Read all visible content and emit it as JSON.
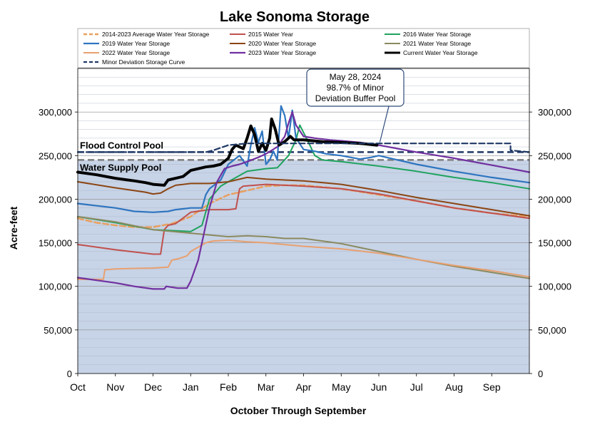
{
  "chart_data": {
    "type": "line",
    "title": "Lake Sonoma Storage",
    "xlabel": "October Through September",
    "ylabel": "Acre-feet",
    "x_categories": [
      "Oct",
      "Nov",
      "Dec",
      "Jan",
      "Feb",
      "Mar",
      "Apr",
      "May",
      "Jun",
      "Jul",
      "Aug",
      "Sep"
    ],
    "x_range": [
      0,
      12
    ],
    "ylim": [
      0,
      350000
    ],
    "y_ticks": [
      0,
      50000,
      100000,
      150000,
      200000,
      250000,
      300000
    ],
    "y_tick_labels": [
      "0",
      "50,000",
      "100,000",
      "150,000",
      "200,000",
      "250,000",
      "300,000"
    ],
    "grid": "horizontal",
    "legend_position": "top",
    "pools": {
      "flood_control": {
        "label": "Flood Control Pool",
        "value": 254000,
        "color": "#1f3864"
      },
      "water_supply": {
        "label": "Water Supply Pool",
        "value": 245000,
        "color": "#7f7f7f",
        "fill": "#c7d3e6"
      }
    },
    "annotation": {
      "lines": [
        "May 28, 2024",
        "98.7% of Minor",
        "Deviation Buffer Pool"
      ],
      "point": {
        "x": 7.95,
        "y": 262000
      }
    },
    "series": [
      {
        "name": "2014-2023 Average Water Year Storage",
        "color": "#e8a060",
        "dash": "dashed",
        "width": 2.5,
        "points": [
          [
            0,
            178000
          ],
          [
            0.5,
            173000
          ],
          [
            1,
            170000
          ],
          [
            1.5,
            168000
          ],
          [
            2,
            168000
          ],
          [
            2.5,
            172000
          ],
          [
            3,
            180000
          ],
          [
            3.5,
            195000
          ],
          [
            4,
            205000
          ],
          [
            4.3,
            208000
          ],
          [
            4.7,
            212000
          ],
          [
            5,
            215000
          ],
          [
            5.5,
            216000
          ],
          [
            6,
            216000
          ],
          [
            7,
            212000
          ],
          [
            8,
            205000
          ],
          [
            9,
            198000
          ],
          [
            10,
            190000
          ],
          [
            11,
            184000
          ],
          [
            12,
            180000
          ]
        ]
      },
      {
        "name": "2015 Water Year",
        "color": "#c0504d",
        "width": 2,
        "points": [
          [
            0,
            148000
          ],
          [
            1,
            142000
          ],
          [
            2,
            137000
          ],
          [
            2.2,
            137000
          ],
          [
            2.3,
            165000
          ],
          [
            2.4,
            170000
          ],
          [
            2.6,
            172000
          ],
          [
            3,
            185000
          ],
          [
            3.5,
            188000
          ],
          [
            4,
            188000
          ],
          [
            4.2,
            189000
          ],
          [
            4.3,
            212000
          ],
          [
            4.4,
            215000
          ],
          [
            5,
            217000
          ],
          [
            6,
            215000
          ],
          [
            7,
            212000
          ],
          [
            8,
            206000
          ],
          [
            9,
            198000
          ],
          [
            10,
            190000
          ],
          [
            11,
            184000
          ],
          [
            12,
            178000
          ]
        ]
      },
      {
        "name": "2016 Water Year Storage",
        "color": "#1fa35f",
        "width": 2,
        "points": [
          [
            0,
            180000
          ],
          [
            1,
            173000
          ],
          [
            2,
            165000
          ],
          [
            3,
            163000
          ],
          [
            3.3,
            170000
          ],
          [
            3.5,
            200000
          ],
          [
            3.8,
            215000
          ],
          [
            4,
            220000
          ],
          [
            4.5,
            232000
          ],
          [
            5,
            235000
          ],
          [
            5.3,
            236000
          ],
          [
            5.6,
            250000
          ],
          [
            5.8,
            268000
          ],
          [
            5.9,
            285000
          ],
          [
            6.1,
            268000
          ],
          [
            6.3,
            250000
          ],
          [
            6.5,
            245000
          ],
          [
            7,
            243000
          ],
          [
            8,
            238000
          ],
          [
            9,
            232000
          ],
          [
            10,
            225000
          ],
          [
            11,
            219000
          ],
          [
            12,
            212000
          ]
        ]
      },
      {
        "name": "2019 Water Year Storage",
        "color": "#2e75c0",
        "width": 2.2,
        "points": [
          [
            0,
            195000
          ],
          [
            1,
            190000
          ],
          [
            1.5,
            186000
          ],
          [
            2,
            185000
          ],
          [
            2.4,
            186000
          ],
          [
            2.6,
            188000
          ],
          [
            3,
            190000
          ],
          [
            3.3,
            190000
          ],
          [
            3.4,
            205000
          ],
          [
            3.5,
            212000
          ],
          [
            3.8,
            222000
          ],
          [
            4,
            240000
          ],
          [
            4.3,
            250000
          ],
          [
            4.5,
            238000
          ],
          [
            4.6,
            262000
          ],
          [
            4.7,
            282000
          ],
          [
            4.8,
            265000
          ],
          [
            4.9,
            278000
          ],
          [
            5,
            240000
          ],
          [
            5.1,
            245000
          ],
          [
            5.2,
            255000
          ],
          [
            5.3,
            245000
          ],
          [
            5.35,
            275000
          ],
          [
            5.4,
            307000
          ],
          [
            5.5,
            296000
          ],
          [
            5.6,
            270000
          ],
          [
            5.7,
            302000
          ],
          [
            5.8,
            270000
          ],
          [
            6,
            257000
          ],
          [
            6.3,
            255000
          ],
          [
            6.6,
            252000
          ],
          [
            7,
            250000
          ],
          [
            7.5,
            246000
          ],
          [
            7.8,
            248000
          ],
          [
            8,
            250000
          ],
          [
            8.5,
            245000
          ],
          [
            9,
            240000
          ],
          [
            10,
            232000
          ],
          [
            11,
            225000
          ],
          [
            12,
            219000
          ]
        ]
      },
      {
        "name": "2020 Water Year Storage",
        "color": "#8b4513",
        "width": 2,
        "points": [
          [
            0,
            220000
          ],
          [
            1,
            213000
          ],
          [
            1.8,
            208000
          ],
          [
            2,
            206000
          ],
          [
            2.2,
            207000
          ],
          [
            2.4,
            212000
          ],
          [
            2.6,
            216000
          ],
          [
            3,
            218000
          ],
          [
            3.5,
            218000
          ],
          [
            4,
            220000
          ],
          [
            4.5,
            225000
          ],
          [
            5,
            223000
          ],
          [
            6,
            221000
          ],
          [
            7,
            217000
          ],
          [
            8,
            210000
          ],
          [
            9,
            202000
          ],
          [
            10,
            195000
          ],
          [
            11,
            188000
          ],
          [
            12,
            181000
          ]
        ]
      },
      {
        "name": "2021 Water Year Storage",
        "color": "#8a8a60",
        "width": 2,
        "points": [
          [
            0,
            180000
          ],
          [
            1,
            174000
          ],
          [
            2,
            165000
          ],
          [
            3,
            161000
          ],
          [
            3.5,
            159000
          ],
          [
            4,
            157000
          ],
          [
            4.5,
            158000
          ],
          [
            5,
            157000
          ],
          [
            5.5,
            155000
          ],
          [
            6,
            155000
          ],
          [
            7,
            149000
          ],
          [
            8,
            140000
          ],
          [
            9,
            131000
          ],
          [
            10,
            123000
          ],
          [
            11,
            116000
          ],
          [
            12,
            109000
          ]
        ]
      },
      {
        "name": "2022 Water Year Storage",
        "color": "#e8a070",
        "width": 2,
        "points": [
          [
            0,
            108000
          ],
          [
            0.68,
            108000
          ],
          [
            0.72,
            119000
          ],
          [
            1,
            120000
          ],
          [
            2,
            121000
          ],
          [
            2.4,
            122000
          ],
          [
            2.5,
            130000
          ],
          [
            2.7,
            132000
          ],
          [
            2.9,
            135000
          ],
          [
            3,
            140000
          ],
          [
            3.2,
            145000
          ],
          [
            3.4,
            150000
          ],
          [
            3.6,
            152000
          ],
          [
            4,
            153000
          ],
          [
            4.5,
            151000
          ],
          [
            5,
            150000
          ],
          [
            6,
            146000
          ],
          [
            7,
            143000
          ],
          [
            8,
            138000
          ],
          [
            9,
            131000
          ],
          [
            10,
            124000
          ],
          [
            11,
            118000
          ],
          [
            12,
            111000
          ]
        ]
      },
      {
        "name": "2023 Water Year Storage",
        "color": "#7030a0",
        "width": 2.2,
        "points": [
          [
            0,
            110000
          ],
          [
            0.5,
            107000
          ],
          [
            1,
            104000
          ],
          [
            1.5,
            100000
          ],
          [
            2,
            97000
          ],
          [
            2.3,
            97000
          ],
          [
            2.35,
            100000
          ],
          [
            2.65,
            98000
          ],
          [
            2.9,
            98000
          ],
          [
            3,
            106000
          ],
          [
            3.2,
            130000
          ],
          [
            3.35,
            160000
          ],
          [
            3.5,
            190000
          ],
          [
            3.7,
            220000
          ],
          [
            3.9,
            235000
          ],
          [
            4.1,
            238000
          ],
          [
            4.3,
            240000
          ],
          [
            4.5,
            243000
          ],
          [
            4.8,
            248000
          ],
          [
            5,
            252000
          ],
          [
            5.3,
            260000
          ],
          [
            5.5,
            272000
          ],
          [
            5.6,
            287000
          ],
          [
            5.7,
            300000
          ],
          [
            5.8,
            285000
          ],
          [
            6,
            272000
          ],
          [
            6.3,
            270000
          ],
          [
            6.7,
            268000
          ],
          [
            7,
            267000
          ],
          [
            7.5,
            265000
          ],
          [
            8,
            262000
          ],
          [
            8.5,
            258000
          ],
          [
            9,
            254000
          ],
          [
            10,
            247000
          ],
          [
            11,
            239000
          ],
          [
            12,
            231000
          ]
        ]
      },
      {
        "name": "Current Water Year Storage",
        "color": "#000000",
        "width": 4,
        "points": [
          [
            0,
            231000
          ],
          [
            0.5,
            228000
          ],
          [
            1,
            224000
          ],
          [
            1.5,
            221000
          ],
          [
            1.8,
            219000
          ],
          [
            2,
            217000
          ],
          [
            2.3,
            216000
          ],
          [
            2.4,
            222000
          ],
          [
            2.6,
            224000
          ],
          [
            2.8,
            226000
          ],
          [
            3,
            233000
          ],
          [
            3.4,
            237000
          ],
          [
            3.6,
            238000
          ],
          [
            3.8,
            240000
          ],
          [
            4,
            247000
          ],
          [
            4.1,
            257000
          ],
          [
            4.2,
            262000
          ],
          [
            4.3,
            260000
          ],
          [
            4.4,
            258000
          ],
          [
            4.5,
            270000
          ],
          [
            4.6,
            284000
          ],
          [
            4.7,
            274000
          ],
          [
            4.8,
            255000
          ],
          [
            4.9,
            264000
          ],
          [
            5,
            256000
          ],
          [
            5.1,
            270000
          ],
          [
            5.15,
            292000
          ],
          [
            5.25,
            280000
          ],
          [
            5.35,
            262000
          ],
          [
            5.5,
            266000
          ],
          [
            5.65,
            272000
          ],
          [
            5.75,
            268000
          ],
          [
            6,
            268000
          ],
          [
            6.5,
            266000
          ],
          [
            7,
            265000
          ],
          [
            7.5,
            264000
          ],
          [
            7.95,
            262000
          ]
        ]
      },
      {
        "name": "Minor Deviation Storage Curve",
        "color": "#1f3864",
        "dash": "dashed",
        "width": 2.2,
        "points": [
          [
            0,
            254000
          ],
          [
            3.4,
            254000
          ],
          [
            3.6,
            256000
          ],
          [
            3.8,
            259000
          ],
          [
            4,
            262000
          ],
          [
            4.5,
            264000
          ],
          [
            5,
            264000
          ],
          [
            5.5,
            264000
          ],
          [
            6,
            264000
          ],
          [
            7,
            264000
          ],
          [
            8,
            264000
          ],
          [
            9,
            264000
          ],
          [
            10,
            264000
          ],
          [
            11,
            264000
          ],
          [
            11.5,
            264000
          ],
          [
            11.5,
            256000
          ],
          [
            12,
            254000
          ]
        ]
      }
    ]
  }
}
